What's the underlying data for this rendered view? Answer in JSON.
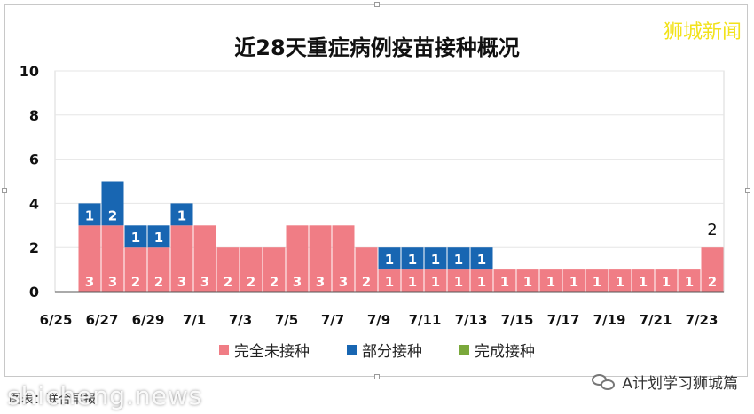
{
  "title": "近28天重症病例疫苗接种概况",
  "brand": "狮城新闻",
  "footer": {
    "source_label": "图表：",
    "source_text": "联合早报",
    "watermark": "shicheng.news",
    "wechat_account": "A计划学习狮城篇"
  },
  "colors": {
    "unvaccinated": "#f07d85",
    "partial": "#1866b2",
    "full": "#7aa83b",
    "brand": "#f2e21a"
  },
  "chart_data": {
    "type": "bar",
    "stacked": true,
    "categories": [
      "6/25",
      "6/26",
      "6/27",
      "6/28",
      "6/29",
      "6/30",
      "7/1",
      "7/2",
      "7/3",
      "7/4",
      "7/5",
      "7/6",
      "7/7",
      "7/8",
      "7/9",
      "7/10",
      "7/11",
      "7/12",
      "7/13",
      "7/14",
      "7/15",
      "7/16",
      "7/17",
      "7/18",
      "7/19",
      "7/20",
      "7/21",
      "7/22",
      "7/23"
    ],
    "x_tick_labels": [
      "6/25",
      "6/27",
      "6/29",
      "7/1",
      "7/3",
      "7/5",
      "7/7",
      "7/9",
      "7/11",
      "7/13",
      "7/15",
      "7/17",
      "7/19",
      "7/21",
      "7/23"
    ],
    "series": [
      {
        "name": "完全未接种",
        "color": "#f07d85",
        "values": [
          0,
          3,
          3,
          2,
          2,
          3,
          3,
          2,
          2,
          2,
          3,
          3,
          3,
          2,
          1,
          1,
          1,
          1,
          1,
          1,
          1,
          1,
          1,
          1,
          1,
          1,
          1,
          1,
          2
        ]
      },
      {
        "name": "部分接种",
        "color": "#1866b2",
        "values": [
          0,
          1,
          2,
          1,
          1,
          1,
          0,
          0,
          0,
          0,
          0,
          0,
          0,
          0,
          1,
          1,
          1,
          1,
          1,
          0,
          0,
          0,
          0,
          0,
          0,
          0,
          0,
          0,
          0
        ]
      },
      {
        "name": "完成接种",
        "color": "#7aa83b",
        "values": [
          0,
          0,
          0,
          0,
          0,
          0,
          0,
          0,
          0,
          0,
          0,
          0,
          0,
          0,
          0,
          0,
          0,
          0,
          0,
          0,
          0,
          0,
          0,
          0,
          0,
          0,
          0,
          0,
          0
        ]
      }
    ],
    "totals_labeled": [
      {
        "category": "7/23",
        "value": 2
      }
    ],
    "ylim": [
      0,
      10
    ],
    "yticks": [
      0,
      2,
      4,
      6,
      8,
      10
    ],
    "grid": true,
    "legend_position": "bottom"
  }
}
